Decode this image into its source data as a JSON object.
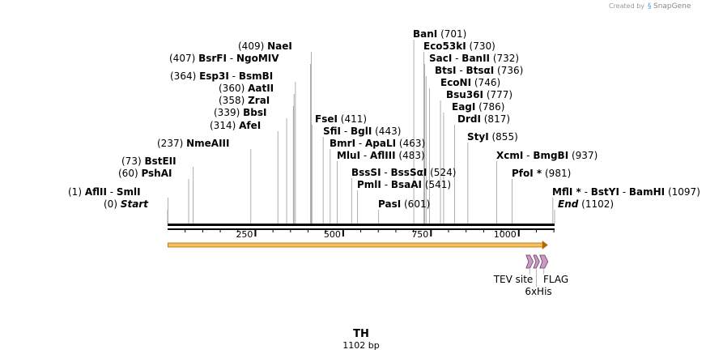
{
  "branding": {
    "text": "Created by",
    "brand": "SnapGene"
  },
  "title": "TH",
  "length_label": "1102 bp",
  "seq_length": 1102,
  "axis_ticks": [
    "250",
    "500",
    "750",
    "1000"
  ],
  "sites": [
    {
      "id": "s1",
      "pos": 1,
      "enzymes": [
        "AflII",
        "SmlI"
      ],
      "paren": "(1)",
      "ppos": "left"
    },
    {
      "id": "s0",
      "pos": 0,
      "enzymes": [
        "Start"
      ],
      "paren": "(0)",
      "ppos": "left",
      "italic": true
    },
    {
      "id": "s60",
      "pos": 60,
      "enzymes": [
        "PshAI"
      ],
      "paren": "(60)",
      "ppos": "left"
    },
    {
      "id": "s73",
      "pos": 73,
      "enzymes": [
        "BstEII"
      ],
      "paren": "(73)",
      "ppos": "left"
    },
    {
      "id": "s237",
      "pos": 237,
      "enzymes": [
        "NmeAIII"
      ],
      "paren": "(237)",
      "ppos": "left"
    },
    {
      "id": "s314",
      "pos": 314,
      "enzymes": [
        "AfeI"
      ],
      "paren": "(314)",
      "ppos": "left"
    },
    {
      "id": "s339",
      "pos": 339,
      "enzymes": [
        "BbsI"
      ],
      "paren": "(339)",
      "ppos": "left"
    },
    {
      "id": "s358",
      "pos": 358,
      "enzymes": [
        "ZraI"
      ],
      "paren": "(358)",
      "ppos": "left"
    },
    {
      "id": "s360",
      "pos": 360,
      "enzymes": [
        "AatII"
      ],
      "paren": "(360)",
      "ppos": "left"
    },
    {
      "id": "s364",
      "pos": 364,
      "enzymes": [
        "Esp3I",
        "BsmBI"
      ],
      "paren": "(364)",
      "ppos": "left"
    },
    {
      "id": "s407",
      "pos": 407,
      "enzymes": [
        "BsrFI",
        "NgoMIV"
      ],
      "paren": "(407)",
      "ppos": "left"
    },
    {
      "id": "s409",
      "pos": 409,
      "enzymes": [
        "NaeI"
      ],
      "paren": "(409)",
      "ppos": "left"
    },
    {
      "id": "s411",
      "pos": 411,
      "enzymes": [
        "FseI"
      ],
      "paren": "(411)",
      "ppos": "right"
    },
    {
      "id": "s443",
      "pos": 443,
      "enzymes": [
        "SfiI",
        "BglI"
      ],
      "paren": "(443)",
      "ppos": "right"
    },
    {
      "id": "s463",
      "pos": 463,
      "enzymes": [
        "BmrI",
        "ApaLI"
      ],
      "paren": "(463)",
      "ppos": "right"
    },
    {
      "id": "s483",
      "pos": 483,
      "enzymes": [
        "MluI",
        "AflIII"
      ],
      "paren": "(483)",
      "ppos": "right"
    },
    {
      "id": "s524",
      "pos": 524,
      "enzymes": [
        "BssSI",
        "BssSαI"
      ],
      "paren": "(524)",
      "ppos": "right"
    },
    {
      "id": "s541",
      "pos": 541,
      "enzymes": [
        "PmlI",
        "BsaAI"
      ],
      "paren": "(541)",
      "ppos": "right"
    },
    {
      "id": "s601",
      "pos": 601,
      "enzymes": [
        "PasI"
      ],
      "paren": "(601)",
      "ppos": "right"
    },
    {
      "id": "s701",
      "pos": 701,
      "enzymes": [
        "BanI"
      ],
      "paren": "(701)",
      "ppos": "right"
    },
    {
      "id": "s730",
      "pos": 730,
      "enzymes": [
        "Eco53kI"
      ],
      "paren": "(730)",
      "ppos": "right"
    },
    {
      "id": "s732",
      "pos": 732,
      "enzymes": [
        "SacI",
        "BanII"
      ],
      "paren": "(732)",
      "ppos": "right"
    },
    {
      "id": "s736",
      "pos": 736,
      "enzymes": [
        "BtsI",
        "BtsαI"
      ],
      "paren": "(736)",
      "ppos": "right"
    },
    {
      "id": "s746",
      "pos": 746,
      "enzymes": [
        "EcoNI"
      ],
      "paren": "(746)",
      "ppos": "right"
    },
    {
      "id": "s777",
      "pos": 777,
      "enzymes": [
        "Bsu36I"
      ],
      "paren": "(777)",
      "ppos": "right"
    },
    {
      "id": "s786",
      "pos": 786,
      "enzymes": [
        "EagI"
      ],
      "paren": "(786)",
      "ppos": "right"
    },
    {
      "id": "s817",
      "pos": 817,
      "enzymes": [
        "DrdI"
      ],
      "paren": "(817)",
      "ppos": "right"
    },
    {
      "id": "s855",
      "pos": 855,
      "enzymes": [
        "StyI"
      ],
      "paren": "(855)",
      "ppos": "right"
    },
    {
      "id": "s937",
      "pos": 937,
      "enzymes": [
        "XcmI",
        "BmgBI"
      ],
      "paren": "(937)",
      "ppos": "right"
    },
    {
      "id": "s981",
      "pos": 981,
      "enzymes": [
        "PfoI *"
      ],
      "paren": "(981)",
      "ppos": "right"
    },
    {
      "id": "s1097",
      "pos": 1097,
      "enzymes": [
        "MflI *",
        "BstYI",
        "BamHI"
      ],
      "paren": "(1097)",
      "ppos": "right"
    },
    {
      "id": "s1102",
      "pos": 1102,
      "enzymes": [
        "End"
      ],
      "paren": "(1102)",
      "ppos": "right",
      "italic": true
    }
  ],
  "features": [
    {
      "name": "TEV site",
      "start": 1021,
      "end": 1041,
      "color": "#c99ac2"
    },
    {
      "name": "6xHis",
      "start": 1042,
      "end": 1059,
      "color": "#c99ac2"
    },
    {
      "name": "FLAG",
      "start": 1060,
      "end": 1083,
      "color": "#c99ac2"
    }
  ],
  "orf": {
    "start": 1,
    "end": 1083,
    "color": "#f0a020"
  },
  "colors": {
    "backbone": "#000000",
    "feature_stroke": "#6a3a62"
  }
}
